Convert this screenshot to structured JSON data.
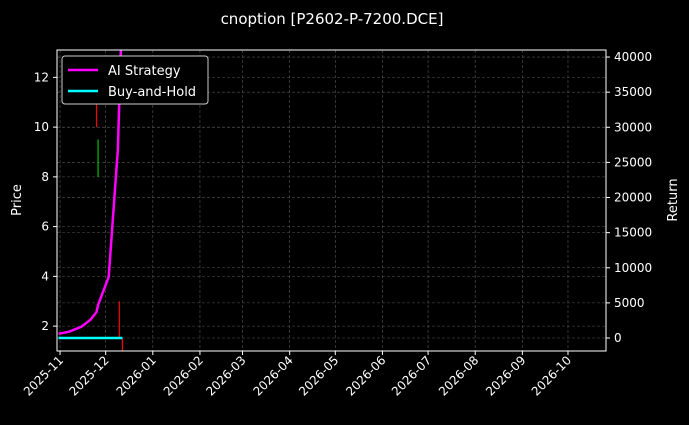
{
  "chart_data": {
    "type": "line",
    "title": "cnoption [P2602-P-7200.DCE]",
    "ylabel": "Price",
    "y2label": "Return",
    "xlim": [
      "2025-10-30",
      "2026-10-26"
    ],
    "ylim": [
      1.0,
      13.1
    ],
    "y2lim": [
      -1850,
      41000
    ],
    "grid": true,
    "legend_position": "upper-left",
    "x_ticks": [
      "2025-11",
      "2025-12",
      "2026-01",
      "2026-02",
      "2026-03",
      "2026-04",
      "2026-05",
      "2026-06",
      "2026-07",
      "2026-08",
      "2026-09",
      "2026-10"
    ],
    "x_tick_dates": [
      "2025-11-01",
      "2025-12-01",
      "2026-01-01",
      "2026-02-01",
      "2026-03-01",
      "2026-04-01",
      "2026-05-01",
      "2026-06-01",
      "2026-07-01",
      "2026-08-01",
      "2026-09-01",
      "2026-10-01"
    ],
    "y_ticks": [
      2,
      4,
      6,
      8,
      10,
      12
    ],
    "y2_ticks": [
      0,
      5000,
      10000,
      15000,
      20000,
      25000,
      30000,
      35000,
      40000
    ],
    "series": [
      {
        "name": "AI Strategy",
        "axis": "right",
        "color": "#ff00ff",
        "x": [
          "2025-10-31",
          "2025-11-07",
          "2025-11-15",
          "2025-11-21",
          "2025-11-25",
          "2025-11-26",
          "2025-12-03",
          "2025-12-09",
          "2025-12-11"
        ],
        "values": [
          600,
          900,
          1600,
          2600,
          3700,
          4700,
          8700,
          26800,
          41000
        ]
      },
      {
        "name": "Buy-and-Hold",
        "axis": "right",
        "color": "#00ffff",
        "x": [
          "2025-10-31",
          "2025-12-12"
        ],
        "values": [
          0,
          0
        ]
      }
    ],
    "price_bars": [
      {
        "x": "2025-11-25",
        "low": 10.0,
        "high": 11.3,
        "color": "#ff0000"
      },
      {
        "x": "2025-11-26",
        "low": 8.0,
        "high": 9.5,
        "color": "#00c000"
      },
      {
        "x": "2025-12-10",
        "low": 1.5,
        "high": 3.0,
        "color": "#ff0000"
      },
      {
        "x": "2025-12-12",
        "low": 1.0,
        "high": 1.5,
        "color": "#ff0000"
      }
    ]
  }
}
